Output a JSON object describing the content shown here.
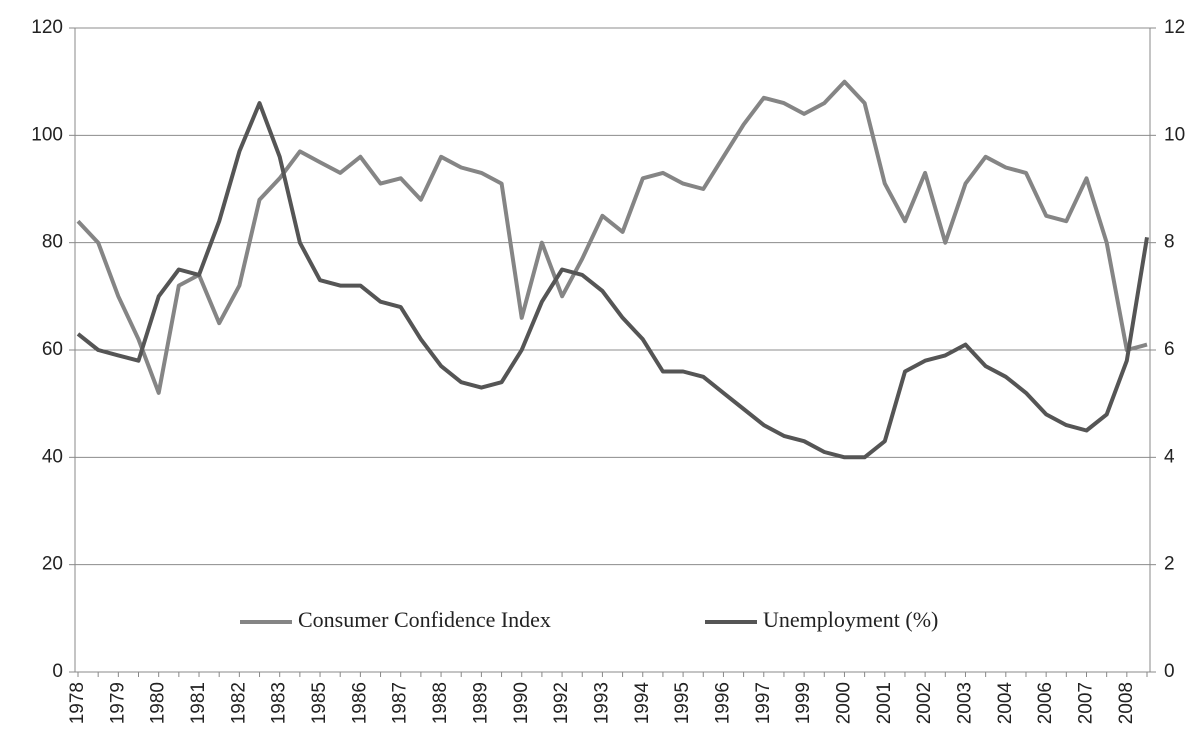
{
  "chart_data": {
    "type": "line",
    "categories": [
      "1978",
      null,
      "1979",
      null,
      "1980",
      null,
      "1981",
      null,
      "1982",
      null,
      "1983",
      null,
      "1985",
      null,
      "1986",
      null,
      "1987",
      null,
      "1988",
      null,
      "1989",
      null,
      "1990",
      null,
      "1992",
      null,
      "1993",
      null,
      "1994",
      null,
      "1995",
      null,
      "1996",
      null,
      "1997",
      null,
      "1999",
      null,
      "2000",
      null,
      "2001",
      null,
      "2002",
      null,
      "2003",
      null,
      "2004",
      null,
      "2006",
      null,
      "2007",
      null,
      "2008",
      null
    ],
    "series": [
      {
        "name": "Consumer Confidence Index",
        "color": "#858585",
        "values": [
          84,
          80,
          70,
          62,
          52,
          72,
          74,
          65,
          72,
          88,
          92,
          97,
          95,
          93,
          96,
          91,
          92,
          88,
          96,
          94,
          93,
          91,
          66,
          80,
          70,
          77,
          85,
          82,
          92,
          93,
          91,
          90,
          96,
          102,
          107,
          106,
          104,
          106,
          110,
          106,
          91,
          84,
          93,
          80,
          91,
          96,
          94,
          93,
          85,
          84,
          92,
          80,
          60,
          61
        ]
      },
      {
        "name": "Unemployment (%)",
        "color": "#555555",
        "axis": "y2",
        "values": [
          6.3,
          6.0,
          5.9,
          5.8,
          7.0,
          7.5,
          7.4,
          8.4,
          9.7,
          10.6,
          9.6,
          8.0,
          7.3,
          7.2,
          7.2,
          6.9,
          6.8,
          6.2,
          5.7,
          5.4,
          5.3,
          5.4,
          6.0,
          6.9,
          7.5,
          7.4,
          7.1,
          6.6,
          6.2,
          5.6,
          5.6,
          5.5,
          5.2,
          4.9,
          4.6,
          4.4,
          4.3,
          4.1,
          4.0,
          4.0,
          4.3,
          5.6,
          5.8,
          5.9,
          6.1,
          5.7,
          5.5,
          5.2,
          4.8,
          4.6,
          4.5,
          4.8,
          5.8,
          8.1
        ]
      }
    ],
    "ylim": [
      0,
      120
    ],
    "yticks": [
      0,
      20,
      40,
      60,
      80,
      100,
      120
    ],
    "y2lim": [
      0,
      12
    ],
    "y2ticks": [
      0,
      2,
      4,
      6,
      8,
      10,
      12
    ],
    "grid": true,
    "legend": "bottom"
  }
}
